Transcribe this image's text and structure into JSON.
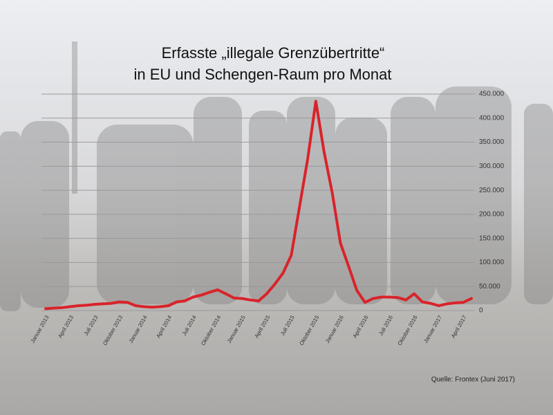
{
  "chart_data": {
    "type": "line",
    "title": [
      "Erfasste „illegale Grenzübertritte“",
      "in EU und Schengen-Raum pro Monat"
    ],
    "source": "Quelle: Frontex (Juni 2017)",
    "categories": [
      "Januar 2013",
      null,
      null,
      "April 2013",
      null,
      null,
      "Juli 2013",
      null,
      null,
      "Oktober 2013",
      null,
      null,
      "Januar 2014",
      null,
      null,
      "April 2014",
      null,
      null,
      "Juli 2014",
      null,
      null,
      "Oktober 2014",
      null,
      null,
      "Januar 2015",
      null,
      null,
      "April 2015",
      null,
      null,
      "Juli 2015",
      null,
      null,
      "Oktober 2015",
      null,
      null,
      "Januar 2016",
      null,
      null,
      "April 2016",
      null,
      null,
      "Juli 2016",
      null,
      null,
      "Oktober 2016",
      null,
      null,
      "Januar 2017",
      null,
      null,
      "April 2017",
      null
    ],
    "series": [
      {
        "name": "Grenzübertritte",
        "color": "#d9232a",
        "values": [
          4000,
          5000,
          6000,
          8000,
          10000,
          11000,
          13000,
          14000,
          15000,
          18000,
          17000,
          10000,
          8000,
          7000,
          8000,
          10000,
          18000,
          20000,
          28000,
          32000,
          38000,
          43000,
          35000,
          26000,
          25000,
          22000,
          20000,
          35000,
          55000,
          78000,
          115000,
          215000,
          315000,
          435000,
          330000,
          245000,
          140000,
          92000,
          42000,
          17000,
          25000,
          28000,
          28000,
          27000,
          22000,
          35000,
          18000,
          15000,
          10000,
          14000,
          16000,
          17000,
          25000
        ]
      }
    ],
    "ylim": [
      0,
      450000
    ],
    "yticks": [
      0,
      {
        "value": 50000,
        "label": "50.000"
      },
      {
        "value": 100000,
        "label": "100.000"
      },
      {
        "value": 150000,
        "label": "150.000"
      },
      {
        "value": 200000,
        "label": "200.000"
      },
      {
        "value": 250000,
        "label": "250.000"
      },
      {
        "value": 300000,
        "label": "300.000"
      },
      {
        "value": 350000,
        "label": "350.000"
      },
      {
        "value": 400000,
        "label": "400.000"
      },
      {
        "value": 450000,
        "label": "450.000"
      }
    ],
    "grid": true
  }
}
